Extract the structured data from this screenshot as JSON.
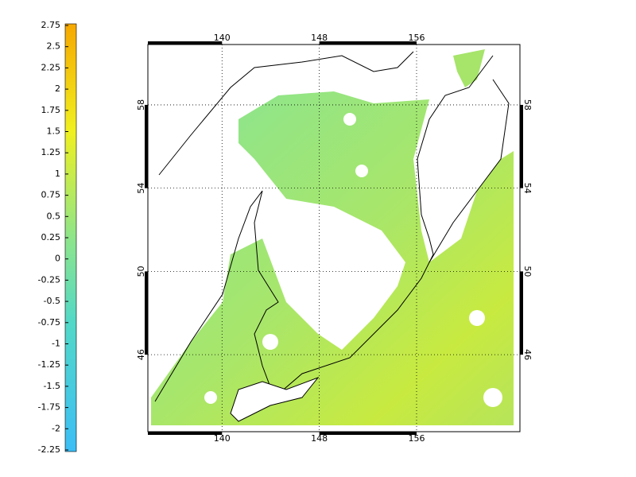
{
  "colorbar": {
    "range": [
      -2.25,
      2.75
    ],
    "ticks": [
      2.75,
      2.5,
      2.25,
      2,
      1.75,
      1.5,
      1.25,
      1,
      0.75,
      0.5,
      0.25,
      0,
      -0.25,
      -0.5,
      -0.75,
      -1,
      -1.25,
      -1.5,
      -1.75,
      -2,
      -2.25
    ]
  },
  "map": {
    "lon_range": [
      133.9,
      164.5
    ],
    "lat_range": [
      42.3,
      60.9
    ],
    "lon_ticks": [
      140,
      148,
      156
    ],
    "lat_ticks": [
      58,
      54,
      50,
      46
    ]
  }
}
